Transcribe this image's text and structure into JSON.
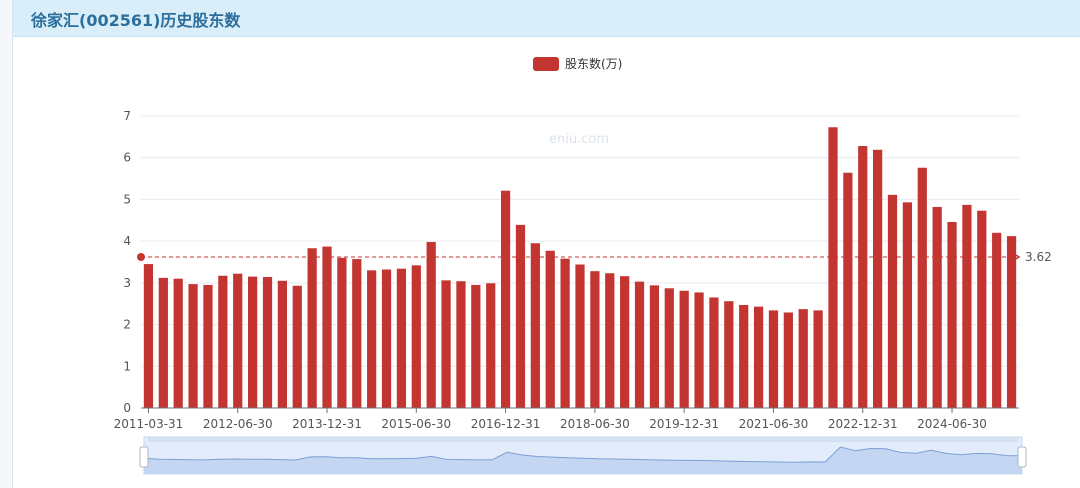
{
  "header": {
    "title": "徐家汇(002561)历史股东数"
  },
  "watermark": "eniu.com",
  "colors": {
    "bar": "#c23531",
    "grid": "#e6e9f0",
    "axis": "#6e7079",
    "slider_fill": "#e3ecfb",
    "slider_line": "#7b9fd6"
  },
  "chart_data": {
    "type": "bar",
    "legend": {
      "label": "股东数(万)",
      "placement": "top-center"
    },
    "x_tick_labels": [
      "2011-03-31",
      "2012-06-30",
      "2013-12-31",
      "2015-06-30",
      "2016-12-31",
      "2018-06-30",
      "2019-12-31",
      "2021-06-30",
      "2022-12-31",
      "2024-06-30"
    ],
    "x_tick_indices": [
      0,
      6,
      12,
      18,
      24,
      30,
      36,
      42,
      48,
      54
    ],
    "values": [
      3.45,
      3.12,
      3.1,
      2.97,
      2.95,
      3.17,
      3.22,
      3.15,
      3.14,
      3.05,
      2.93,
      3.83,
      3.87,
      3.6,
      3.57,
      3.3,
      3.32,
      3.34,
      3.42,
      3.98,
      3.06,
      3.04,
      2.95,
      2.99,
      5.21,
      4.39,
      3.95,
      3.77,
      3.58,
      3.44,
      3.28,
      3.23,
      3.16,
      3.03,
      2.94,
      2.87,
      2.81,
      2.77,
      2.65,
      2.56,
      2.47,
      2.43,
      2.34,
      2.29,
      2.37,
      2.34,
      6.73,
      5.64,
      6.28,
      6.19,
      5.11,
      4.93,
      5.76,
      4.82,
      4.46,
      4.87,
      4.73,
      4.2,
      4.12
    ],
    "ylim": [
      0,
      7
    ],
    "y_ticks": [
      0,
      1,
      2,
      3,
      4,
      5,
      6,
      7
    ],
    "grid": true,
    "reference_line": {
      "value": 3.62,
      "label": "3.62"
    },
    "zoom_slider": {
      "visible": true,
      "range_percent": [
        0,
        100
      ]
    }
  }
}
